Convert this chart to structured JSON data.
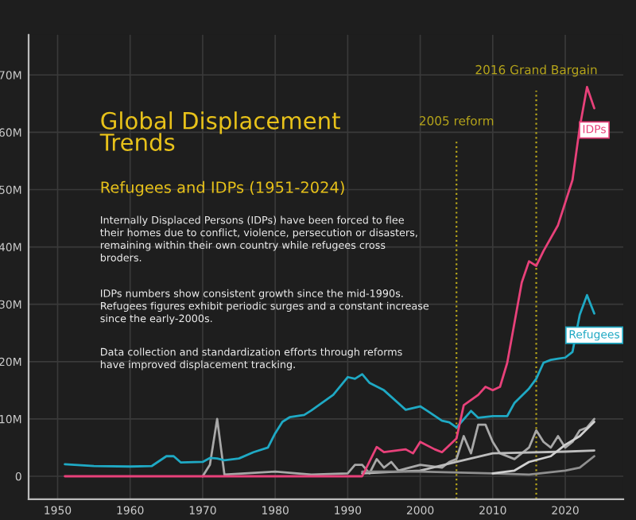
{
  "chart_data": {
    "type": "line",
    "title": "Global Displacement\nTrends",
    "subtitle": "Refugees and IDPs (1951-2024)",
    "annotations": [
      "Internally Displaced Persons (IDPs) have been forced to flee\ntheir homes due to conflict, violence, persecution or disasters,\nremaining within their own country while refugees cross\nbroders.",
      "IDPs numbers show consistent growth since the mid-1990s.\nRefugees figures exhibit periodic surges and a constant increase\nsince the early-2000s.",
      "Data collection and standardization efforts through reforms\nhave improved displacement tracking."
    ],
    "series": [
      {
        "name": "Refugees",
        "color": "#1fa9c4",
        "x": [
          1951,
          1955,
          1960,
          1963,
          1965,
          1966,
          1967,
          1970,
          1971,
          1972,
          1973,
          1975,
          1977,
          1979,
          1980,
          1981,
          1982,
          1984,
          1985,
          1986,
          1988,
          1990,
          1991,
          1992,
          1993,
          1995,
          1998,
          2000,
          2001,
          2003,
          2004,
          2005,
          2007,
          2008,
          2010,
          2012,
          2013,
          2015,
          2016,
          2017,
          2018,
          2019,
          2020,
          2021,
          2022,
          2023,
          2024
        ],
        "values": [
          2.1,
          1.8,
          1.7,
          1.8,
          3.5,
          3.5,
          2.4,
          2.5,
          3.2,
          3.1,
          2.8,
          3.1,
          4.2,
          5,
          7.5,
          9.5,
          10.3,
          10.7,
          11.5,
          12.4,
          14.2,
          17.3,
          17,
          17.8,
          16.3,
          15,
          11.6,
          12.2,
          11.4,
          9.7,
          9.4,
          8.5,
          11.4,
          10.2,
          10.5,
          10.5,
          12.8,
          15.3,
          17,
          19.8,
          20.3,
          20.5,
          20.7,
          21.7,
          28.2,
          31.6,
          28.4
        ]
      },
      {
        "name": "IDPs",
        "color": "#e8417a",
        "x": [
          1951,
          1970,
          1980,
          1990,
          1992,
          1994,
          1995,
          1998,
          1999,
          2000,
          2002,
          2003,
          2005,
          2006,
          2008,
          2009,
          2010,
          2011,
          2012,
          2014,
          2015,
          2016,
          2017,
          2019,
          2021,
          2022,
          2023,
          2024
        ],
        "values": [
          0,
          0,
          0,
          0,
          0,
          5.1,
          4.2,
          4.7,
          4,
          6,
          4.7,
          4.2,
          6.6,
          12.4,
          14.2,
          15.6,
          15,
          15.6,
          19.8,
          33.8,
          37.5,
          36.7,
          39.3,
          43.8,
          51.7,
          60.9,
          67.9,
          64.2
        ]
      },
      {
        "color": "#a8a8a8",
        "x": [
          1970,
          1971,
          1972,
          1973,
          1980,
          1985,
          1990,
          1991,
          1992,
          1993,
          1994,
          1995,
          1996,
          1997,
          2000,
          2003,
          2004,
          2005,
          2006,
          2007,
          2008,
          2009,
          2010,
          2011,
          2013,
          2015,
          2016,
          2017,
          2018,
          2019,
          2020,
          2021,
          2022,
          2023,
          2024
        ],
        "values": [
          0,
          2,
          10,
          0.3,
          0.8,
          0.3,
          0.5,
          2,
          2,
          0.5,
          3,
          1.5,
          2.5,
          1,
          2,
          1.5,
          2.5,
          3,
          7,
          4,
          9,
          9,
          6,
          4,
          3,
          5,
          8,
          6,
          5,
          7,
          5,
          6,
          8,
          8.5,
          10
        ]
      },
      {
        "color": "#bdbdbd",
        "x": [
          1992,
          2000,
          2005,
          2010,
          2020,
          2024
        ],
        "values": [
          0.5,
          1,
          2.5,
          4,
          4.3,
          4.5
        ]
      },
      {
        "color": "#8f8f8f",
        "x": [
          1992,
          2000,
          2010,
          2015,
          2020,
          2022,
          2024
        ],
        "values": [
          0.8,
          0.8,
          0.5,
          0.3,
          1,
          1.5,
          3.5
        ]
      },
      {
        "color": "#d0d0d0",
        "x": [
          2010,
          2013,
          2015,
          2018,
          2020,
          2022,
          2024
        ],
        "values": [
          0.5,
          1,
          2.5,
          3.5,
          5.5,
          7,
          9.5
        ]
      }
    ],
    "ref_lines": [
      {
        "axis": "x",
        "value": 2005,
        "label": "2005 reform",
        "color": "#b5a41a",
        "line_style": "dotted"
      },
      {
        "axis": "x",
        "value": 2016,
        "label": "2016 Grand Bargain",
        "color": "#b5a41a",
        "line_style": "dotted"
      }
    ],
    "xlim": [
      1946,
      2028
    ],
    "ylim": [
      -4,
      77
    ],
    "xticks": [
      1950,
      1960,
      1970,
      1980,
      1990,
      2000,
      2010,
      2020
    ],
    "yticks": [
      {
        "value": 0,
        "label": "0"
      },
      {
        "value": 10,
        "label": "10M"
      },
      {
        "value": 20,
        "label": "20M"
      },
      {
        "value": 30,
        "label": "30M"
      },
      {
        "value": 40,
        "label": "40M"
      },
      {
        "value": 50,
        "label": "50M"
      },
      {
        "value": 60,
        "label": "60M"
      },
      {
        "value": 70,
        "label": "70M"
      }
    ],
    "grid": true,
    "legend": false,
    "marker": "none",
    "line_style": "solid"
  }
}
